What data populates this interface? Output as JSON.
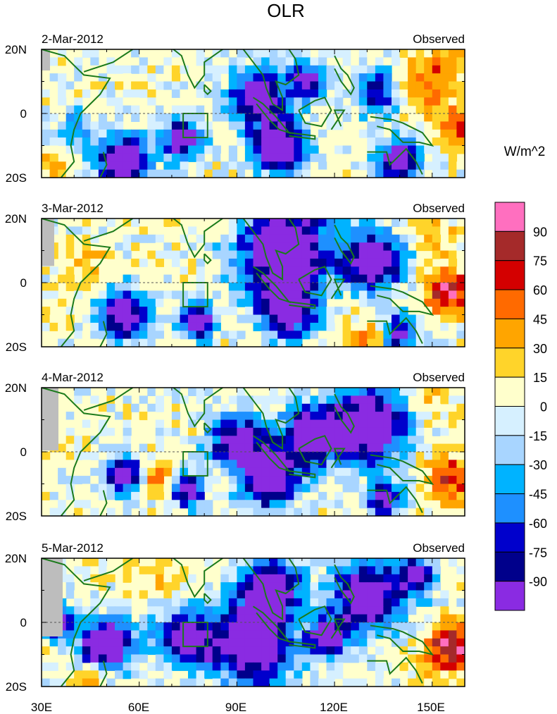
{
  "chart_data": {
    "type": "heatmap",
    "title": "OLR",
    "units": "W/m^2",
    "lon_range": [
      30,
      160
    ],
    "lat_range": [
      -20,
      20
    ],
    "x_ticks": [
      "30E",
      "60E",
      "90E",
      "120E",
      "150E"
    ],
    "x_tick_values": [
      30,
      60,
      90,
      120,
      150
    ],
    "y_ticks": [
      "20N",
      "0",
      "20S"
    ],
    "y_tick_values": [
      20,
      0,
      -20
    ],
    "colorbar": {
      "levels": [
        "90",
        "75",
        "60",
        "45",
        "30",
        "15",
        "0",
        "-15",
        "-30",
        "-45",
        "-60",
        "-75",
        "-90"
      ],
      "colors": [
        "#ff6fbf",
        "#a52a2a",
        "#d40000",
        "#ff6a00",
        "#ffa500",
        "#ffd42a",
        "#ffffcc",
        "#d6f0ff",
        "#a8d5ff",
        "#00b3ff",
        "#1e90ff",
        "#0000cc",
        "#00008b",
        "#8a2be2"
      ]
    },
    "panels": [
      {
        "date": "2-Mar-2012",
        "label": "Observed",
        "features": [
          {
            "lon": 97,
            "lat": 5,
            "r": 9,
            "v": -75
          },
          {
            "lon": 103,
            "lat": -10,
            "r": 8,
            "v": -90
          },
          {
            "lon": 73,
            "lat": -8,
            "r": 6,
            "v": -75
          },
          {
            "lon": 55,
            "lat": -15,
            "r": 8,
            "v": -90
          },
          {
            "lon": 133,
            "lat": 7,
            "r": 7,
            "v": -60
          },
          {
            "lon": 140,
            "lat": -15,
            "r": 7,
            "v": -75
          },
          {
            "lon": 40,
            "lat": -5,
            "r": 6,
            "v": -30
          },
          {
            "lon": 112,
            "lat": 10,
            "r": 6,
            "v": -60
          },
          {
            "lon": 150,
            "lat": 10,
            "r": 12,
            "v": 30
          },
          {
            "lon": 160,
            "lat": -5,
            "r": 6,
            "v": 45
          },
          {
            "lon": 80,
            "lat": 15,
            "r": 15,
            "v": 0
          },
          {
            "lon": 33,
            "lat": -17,
            "r": 4,
            "v": 30
          }
        ]
      },
      {
        "date": "3-Mar-2012",
        "label": "Observed",
        "features": [
          {
            "lon": 105,
            "lat": 10,
            "r": 14,
            "v": -90
          },
          {
            "lon": 132,
            "lat": 7,
            "r": 9,
            "v": -90
          },
          {
            "lon": 105,
            "lat": -8,
            "r": 9,
            "v": -75
          },
          {
            "lon": 78,
            "lat": -12,
            "r": 5,
            "v": -90
          },
          {
            "lon": 55,
            "lat": -10,
            "r": 8,
            "v": -75
          },
          {
            "lon": 140,
            "lat": -16,
            "r": 6,
            "v": -60
          },
          {
            "lon": 155,
            "lat": -3,
            "r": 7,
            "v": 60
          },
          {
            "lon": 130,
            "lat": -18,
            "r": 6,
            "v": 30
          },
          {
            "lon": 45,
            "lat": 5,
            "r": 8,
            "v": 15
          },
          {
            "lon": 150,
            "lat": 15,
            "r": 8,
            "v": 15
          }
        ]
      },
      {
        "date": "4-Mar-2012",
        "label": "Observed",
        "features": [
          {
            "lon": 130,
            "lat": 8,
            "r": 12,
            "v": -90
          },
          {
            "lon": 112,
            "lat": 5,
            "r": 9,
            "v": -75
          },
          {
            "lon": 100,
            "lat": -8,
            "r": 9,
            "v": -90
          },
          {
            "lon": 90,
            "lat": 3,
            "r": 8,
            "v": -75
          },
          {
            "lon": 55,
            "lat": -7,
            "r": 6,
            "v": -75
          },
          {
            "lon": 75,
            "lat": -12,
            "r": 5,
            "v": -75
          },
          {
            "lon": 155,
            "lat": -8,
            "r": 8,
            "v": 45
          },
          {
            "lon": 65,
            "lat": -8,
            "r": 5,
            "v": 30
          },
          {
            "lon": 135,
            "lat": -15,
            "r": 6,
            "v": -60
          },
          {
            "lon": 150,
            "lat": 16,
            "r": 6,
            "v": 15
          }
        ]
      },
      {
        "date": "5-Mar-2012",
        "label": "Observed",
        "features": [
          {
            "lon": 95,
            "lat": -7,
            "r": 12,
            "v": -90
          },
          {
            "lon": 75,
            "lat": -5,
            "r": 9,
            "v": -75
          },
          {
            "lon": 100,
            "lat": 10,
            "r": 9,
            "v": -90
          },
          {
            "lon": 130,
            "lat": 8,
            "r": 12,
            "v": -75
          },
          {
            "lon": 118,
            "lat": -5,
            "r": 6,
            "v": -75
          },
          {
            "lon": 50,
            "lat": -7,
            "r": 8,
            "v": -90
          },
          {
            "lon": 35,
            "lat": 0,
            "r": 5,
            "v": -75
          },
          {
            "lon": 155,
            "lat": -8,
            "r": 8,
            "v": 60
          },
          {
            "lon": 45,
            "lat": -18,
            "r": 5,
            "v": 30
          },
          {
            "lon": 145,
            "lat": 15,
            "r": 6,
            "v": -60
          },
          {
            "lon": 65,
            "lat": 15,
            "r": 8,
            "v": 15
          }
        ]
      }
    ]
  }
}
